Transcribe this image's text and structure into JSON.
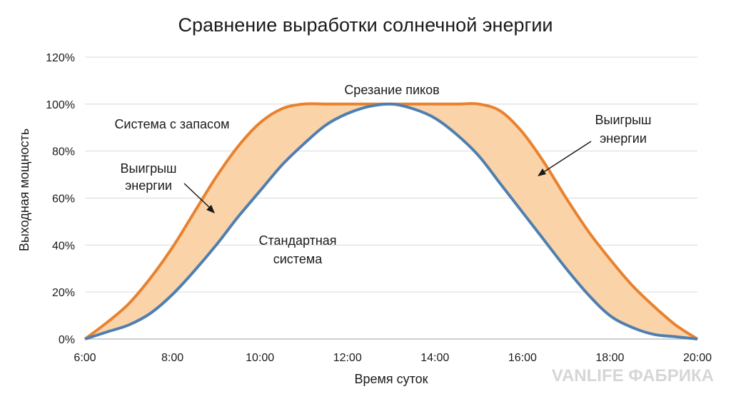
{
  "chart_data": {
    "type": "area",
    "title": "Сравнение выработки солнечной энергии",
    "xlabel": "Время суток",
    "ylabel": "Выходная мощность",
    "x_ticks": [
      "6:00",
      "8:00",
      "10:00",
      "12:00",
      "14:00",
      "16:00",
      "18:00",
      "20:00"
    ],
    "y_ticks": [
      "0%",
      "20%",
      "40%",
      "60%",
      "80%",
      "100%",
      "120%"
    ],
    "xlim": [
      6,
      20
    ],
    "ylim": [
      0,
      120
    ],
    "grid": true,
    "fill_between_series": true,
    "colors": {
      "oversized": "#e8822e",
      "standard": "#4f7fb0",
      "fill": "#fbd3a9"
    },
    "series": [
      {
        "key": "oversized",
        "x": [
          6,
          6.5,
          7,
          7.5,
          8,
          8.5,
          9,
          9.5,
          10,
          10.5,
          11,
          11.5,
          12,
          12.5,
          13,
          13.5,
          14,
          14.5,
          15,
          15.5,
          16,
          16.5,
          17,
          17.5,
          18,
          18.5,
          19,
          19.5,
          20
        ],
        "y": [
          0,
          7,
          15,
          26,
          39,
          54,
          69,
          82,
          92,
          98,
          100,
          100,
          100,
          100,
          100,
          100,
          100,
          100,
          100,
          97,
          88,
          75,
          60,
          46,
          34,
          23,
          14,
          6,
          0
        ]
      },
      {
        "key": "standard",
        "x": [
          6,
          6.5,
          7,
          7.5,
          8,
          8.5,
          9,
          9.5,
          10,
          10.5,
          11,
          11.5,
          12,
          12.5,
          13,
          13.5,
          14,
          14.5,
          15,
          15.5,
          16,
          16.5,
          17,
          17.5,
          18,
          18.5,
          19,
          19.5,
          20
        ],
        "y": [
          0,
          3,
          6,
          11,
          19,
          29,
          40,
          52,
          63,
          74,
          83,
          91,
          96,
          99,
          100,
          98,
          94,
          87,
          78,
          66,
          54,
          42,
          30,
          19,
          10,
          5,
          2,
          1,
          0
        ]
      }
    ],
    "annotations": {
      "peak_clipping": "Срезание пиков",
      "oversized_system": "Система с запасом",
      "gain_left_line1": "Выигрыш",
      "gain_left_line2": "энергии",
      "gain_right_line1": "Выигрыш",
      "gain_right_line2": "энергии",
      "standard_line1": "Стандартная",
      "standard_line2": "система"
    }
  },
  "watermark": "VANLIFE ФАБРИКА"
}
